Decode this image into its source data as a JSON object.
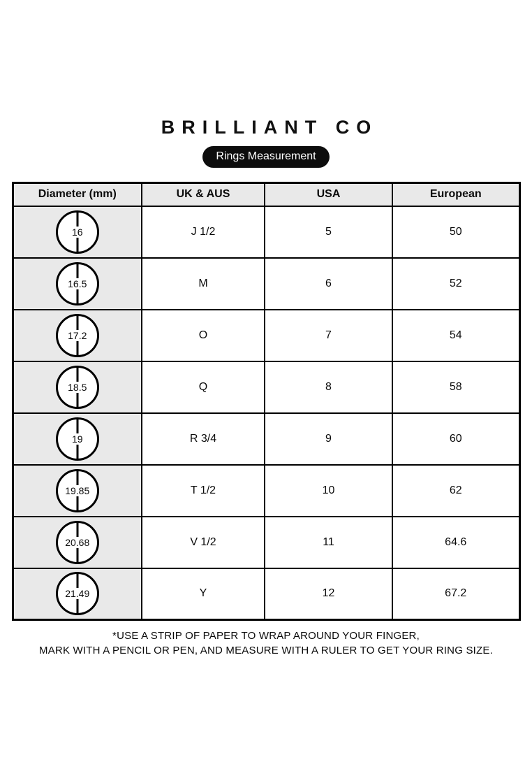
{
  "header": {
    "brand": "BRILLIANT CO"
  },
  "chart_data": {
    "type": "table",
    "title": "Rings Measurement",
    "columns": [
      "Diameter (mm)",
      "UK & AUS",
      "USA",
      "European"
    ],
    "rows": [
      [
        "16",
        "J 1/2",
        "5",
        "50"
      ],
      [
        "16.5",
        "M",
        "6",
        "52"
      ],
      [
        "17.2",
        "O",
        "7",
        "54"
      ],
      [
        "18.5",
        "Q",
        "8",
        "58"
      ],
      [
        "19",
        "R 3/4",
        "9",
        "60"
      ],
      [
        "19.85",
        "T 1/2",
        "10",
        "62"
      ],
      [
        "20.68",
        "V 1/2",
        "11",
        "64.6"
      ],
      [
        "21.49",
        "Y",
        "12",
        "67.2"
      ]
    ]
  },
  "footer": {
    "line1": "*USE A STRIP OF PAPER TO WRAP AROUND YOUR FINGER,",
    "line2": "MARK WITH A PENCIL OR PEN, AND MEASURE WITH A RULER TO GET YOUR RING SIZE."
  },
  "colors": {
    "text": "#0a0a0a",
    "pill_background": "#0d0d0d",
    "cell_gray": "#e9e9e9",
    "border_black": "#000000"
  }
}
